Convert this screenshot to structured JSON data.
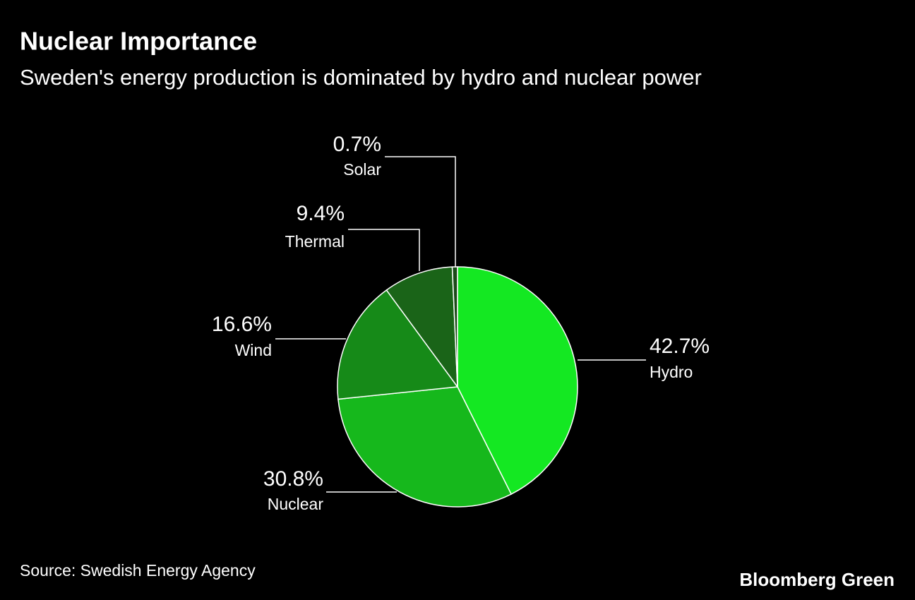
{
  "chart_data": {
    "type": "pie",
    "title": "Nuclear Importance",
    "subtitle": "Sweden's energy production is dominated by hydro and nuclear power",
    "categories": [
      "Hydro",
      "Nuclear",
      "Wind",
      "Thermal",
      "Solar"
    ],
    "values": [
      42.7,
      30.8,
      16.6,
      9.4,
      0.7
    ],
    "value_labels": [
      "42.7%",
      "30.8%",
      "16.6%",
      "9.4%",
      "0.7%"
    ],
    "colors": [
      "#14e822",
      "#16b81c",
      "#168a18",
      "#1a6418",
      "#1a4a18"
    ],
    "source": "Source: Swedish Energy Agency",
    "logo": "Bloomberg Green"
  }
}
